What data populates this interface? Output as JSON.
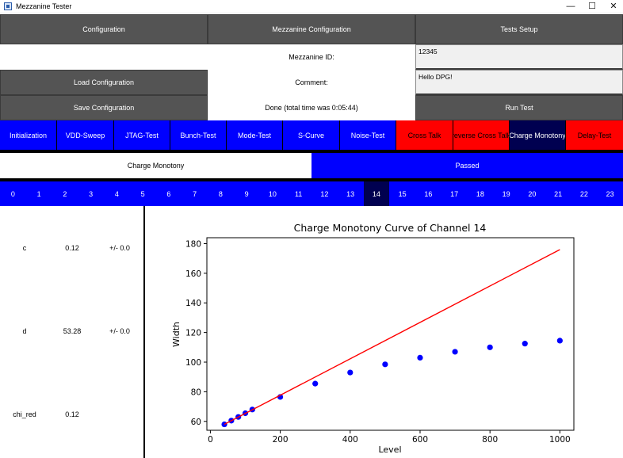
{
  "window": {
    "title": "Mezzanine Tester",
    "minimize": "—",
    "maximize": "☐",
    "close": "✕"
  },
  "menu": {
    "configuration": "Configuration",
    "mezzanine_configuration": "Mezzanine Configuration",
    "tests_setup": "Tests Setup"
  },
  "form": {
    "mezzanine_id_label": "Mezzanine ID:",
    "mezzanine_id_value": "12345",
    "comment_label": "Comment:",
    "comment_value": "Hello DPG!",
    "load_button": "Load Configuration",
    "save_button": "Save Configuration",
    "status_text": "Done (total time was 0:05:44)",
    "run_button": "Run Test"
  },
  "tests": [
    {
      "label": "Initialization",
      "state": "normal"
    },
    {
      "label": "VDD-Sweep",
      "state": "normal"
    },
    {
      "label": "JTAG-Test",
      "state": "normal"
    },
    {
      "label": "Bunch-Test",
      "state": "normal"
    },
    {
      "label": "Mode-Test",
      "state": "normal"
    },
    {
      "label": "S-Curve",
      "state": "normal"
    },
    {
      "label": "Noise-Test",
      "state": "normal"
    },
    {
      "label": "Cross Talk",
      "state": "failed"
    },
    {
      "label": "reverse Cross Talk",
      "state": "failed"
    },
    {
      "label": "Charge Monotony",
      "state": "selected"
    },
    {
      "label": "Delay-Test",
      "state": "failed"
    }
  ],
  "result": {
    "test_name": "Charge Monotony",
    "status": "Passed"
  },
  "channels": [
    "0",
    "1",
    "2",
    "3",
    "4",
    "5",
    "6",
    "7",
    "8",
    "9",
    "10",
    "11",
    "12",
    "13",
    "14",
    "15",
    "16",
    "17",
    "18",
    "19",
    "20",
    "21",
    "22",
    "23"
  ],
  "selected_channel": 14,
  "fit_params": [
    {
      "name": "c",
      "value": "0.12",
      "error": "+/- 0.0"
    },
    {
      "name": "d",
      "value": "53.28",
      "error": "+/- 0.0"
    },
    {
      "name": "chi_red",
      "value": "0.12",
      "error": ""
    }
  ],
  "colors": {
    "tab_blue": "#0000ff",
    "tab_failed": "#ff0000",
    "tab_selected": "#000050",
    "button_gray": "#545454",
    "fit_line": "#ff0000",
    "points": "#0000ff"
  },
  "chart_data": {
    "type": "scatter",
    "title": "Charge Monotony Curve of Channel 14",
    "xlabel": "Level",
    "ylabel": "Width",
    "xlim": [
      -10,
      1040
    ],
    "ylim": [
      54,
      184
    ],
    "xticks": [
      0,
      200,
      400,
      600,
      800,
      1000
    ],
    "yticks": [
      60,
      80,
      100,
      120,
      140,
      160,
      180
    ],
    "series": [
      {
        "kind": "points",
        "color": "#0000ff",
        "x": [
          40,
          60,
          80,
          100,
          120,
          200,
          300,
          400,
          500,
          600,
          700,
          800,
          900,
          1000
        ],
        "y": [
          58,
          60.5,
          63,
          65.5,
          68,
          76.5,
          85.5,
          93,
          98.5,
          103,
          107,
          110,
          112.5,
          114.5
        ]
      },
      {
        "kind": "line",
        "color": "#ff0000",
        "x": [
          40,
          1000
        ],
        "y": [
          58,
          176
        ]
      }
    ],
    "grid": false
  }
}
